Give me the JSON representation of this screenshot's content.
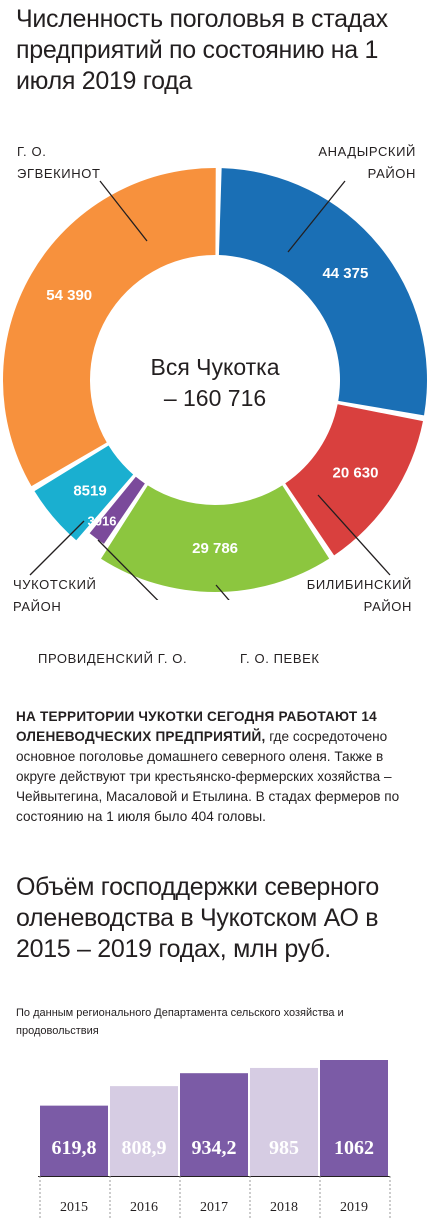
{
  "title": "Численность поголовья в стадах предприятий по состоянию на 1 июля 2019 года",
  "center": {
    "line1": "Вся Чукотка",
    "line2": "– 160 716"
  },
  "labels": {
    "egvekinot": "Г. О. ЭГВЕКИНОТ",
    "anadyr": "АНАДЫРСКИЙ РАЙОН",
    "bilibino": "БИЛИБИНСКИЙ РАЙОН",
    "chukotsky": "ЧУКОТСКИЙ РАЙОН",
    "provideniya": "ПРОВИДЕНСКИЙ Г. О.",
    "pevek": "Г. О. ПЕВЕК"
  },
  "paragraph": {
    "bold": "НА ТЕРРИТОРИИ ЧУКОТКИ СЕГОДНЯ РАБОТАЮТ 14 ОЛЕНЕВОДЧЕСКИХ ПРЕДПРИЯТИЙ,",
    "text": " где сосредоточено основное поголовье домашнего северного оленя. Также в округе действуют три крестьянско-фермерских хозяйства – Чейвытегина, Масаловой и Етылина. В стадах фермеров по состоянию на 1 июля было 404 головы."
  },
  "title2": "Объём господдержки северного оленеводства в Чукотском АО в 2015 – 2019 годах, млн руб.",
  "source": "По данным регионального Департамента сельского хозяйства и продовольствия",
  "chart_data": [
    {
      "type": "pie",
      "title": "Численность поголовья в стадах предприятий по состоянию на 1 июля 2019 года",
      "total_label": "Вся Чукотка – 160 716",
      "slices": [
        {
          "name": "АНАДЫРСКИЙ РАЙОН",
          "value": 44375,
          "label": "44 375",
          "color": "#1a6fb5"
        },
        {
          "name": "БИЛИБИНСКИЙ РАЙОН",
          "value": 20630,
          "label": "20 630",
          "color": "#d9403e"
        },
        {
          "name": "Г. О. ПЕВЕК",
          "value": 29786,
          "label": "29 786",
          "color": "#8cc63f"
        },
        {
          "name": "ПРОВИДЕНСКИЙ Г. О.",
          "value": 3016,
          "label": "3016",
          "color": "#7b4a9b"
        },
        {
          "name": "ЧУКОТСКИЙ РАЙОН",
          "value": 8519,
          "label": "8519",
          "color": "#1aafd0"
        },
        {
          "name": "Г. О. ЭГВЕКИНОТ",
          "value": 54390,
          "label": "54 390",
          "color": "#f7913d"
        }
      ]
    },
    {
      "type": "bar",
      "title": "Объём господдержки северного оленеводства в Чукотском АО в 2015 – 2019 годах, млн руб.",
      "categories": [
        "2015",
        "2016",
        "2017",
        "2018",
        "2019"
      ],
      "values": [
        619.8,
        808.9,
        934.2,
        985,
        1062
      ],
      "value_labels": [
        "619,8",
        "808,9",
        "934,2",
        "985",
        "1062"
      ],
      "colors": [
        "#7b5ba6",
        "#d6cce3",
        "#7b5ba6",
        "#d6cce3",
        "#7b5ba6"
      ],
      "label_colors": [
        "#ffffff",
        "#ffffff",
        "#ffffff",
        "#ffffff",
        "#ffffff"
      ]
    }
  ]
}
